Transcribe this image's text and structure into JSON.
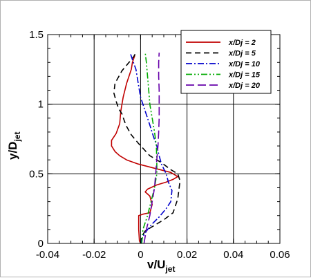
{
  "chart_data": {
    "type": "line",
    "xlabel": "v/U",
    "xlabel_sub": "jet",
    "ylabel": "y/D",
    "ylabel_sub": "jet",
    "xlim": [
      -0.04,
      0.06
    ],
    "ylim": [
      0,
      1.5
    ],
    "xticks": [
      -0.04,
      -0.02,
      0,
      0.02,
      0.04,
      0.06
    ],
    "xtick_labels": [
      "-0.04",
      "-0.02",
      "0",
      "0.02",
      "0.04",
      "0.06"
    ],
    "yticks": [
      0,
      0.5,
      1,
      1.5
    ],
    "ytick_labels": [
      "0",
      "0.5",
      "1",
      "1.5"
    ],
    "grid": true,
    "legend_position": "top-right",
    "series": [
      {
        "name": "x/Dj = 2",
        "color": "#c00000",
        "dash": "solid",
        "points": [
          [
            0,
            0
          ],
          [
            -0.0005,
            0.02
          ],
          [
            -0.0008,
            0.1
          ],
          [
            -0.0008,
            0.2
          ],
          [
            0.001,
            0.21
          ],
          [
            0.004,
            0.22
          ],
          [
            0.005,
            0.28
          ],
          [
            0.004,
            0.34
          ],
          [
            0.002,
            0.37
          ],
          [
            0.003,
            0.39
          ],
          [
            0.007,
            0.42
          ],
          [
            0.011,
            0.44
          ],
          [
            0.014,
            0.46
          ],
          [
            0.016,
            0.48
          ],
          [
            0.013,
            0.51
          ],
          [
            0.006,
            0.54
          ],
          [
            -0.001,
            0.57
          ],
          [
            -0.006,
            0.6
          ],
          [
            -0.009,
            0.63
          ],
          [
            -0.011,
            0.66
          ],
          [
            -0.0125,
            0.7
          ],
          [
            -0.0125,
            0.74
          ],
          [
            -0.0105,
            0.79
          ],
          [
            -0.009,
            0.86
          ],
          [
            -0.0085,
            0.95
          ],
          [
            -0.0075,
            1.05
          ],
          [
            -0.006,
            1.15
          ],
          [
            -0.004,
            1.25
          ],
          [
            -0.0035,
            1.3
          ],
          [
            -0.0025,
            1.35
          ]
        ]
      },
      {
        "name": "x/Dj = 5",
        "color": "#000000",
        "dash": "8,5",
        "points": [
          [
            0,
            0
          ],
          [
            0.0005,
            0.05
          ],
          [
            0.002,
            0.09
          ],
          [
            0.005,
            0.12
          ],
          [
            0.01,
            0.17
          ],
          [
            0.014,
            0.22
          ],
          [
            0.016,
            0.32
          ],
          [
            0.017,
            0.45
          ],
          [
            0.016,
            0.5
          ],
          [
            0.013,
            0.53
          ],
          [
            0.009,
            0.58
          ],
          [
            0.004,
            0.63
          ],
          [
            -0.001,
            0.72
          ],
          [
            -0.004,
            0.78
          ],
          [
            -0.006,
            0.84
          ],
          [
            -0.007,
            0.88
          ],
          [
            -0.008,
            0.93
          ],
          [
            -0.0095,
            0.97
          ],
          [
            -0.0105,
            1.02
          ],
          [
            -0.0115,
            1.08
          ],
          [
            -0.011,
            1.15
          ],
          [
            -0.008,
            1.24
          ],
          [
            -0.005,
            1.3
          ],
          [
            -0.003,
            1.34
          ],
          [
            -0.002,
            1.37
          ]
        ]
      },
      {
        "name": "x/Dj = 10",
        "color": "#0000cc",
        "dash": "9,3,2,3",
        "points": [
          [
            0,
            0
          ],
          [
            0.001,
            0.05
          ],
          [
            0.003,
            0.1
          ],
          [
            0.005,
            0.14
          ],
          [
            0.008,
            0.19
          ],
          [
            0.011,
            0.25
          ],
          [
            0.013,
            0.3
          ],
          [
            0.0135,
            0.38
          ],
          [
            0.012,
            0.44
          ],
          [
            0.011,
            0.5
          ],
          [
            0.009,
            0.57
          ],
          [
            0.008,
            0.63
          ],
          [
            0.007,
            0.7
          ],
          [
            0.0055,
            0.77
          ],
          [
            0.004,
            0.85
          ],
          [
            0.002,
            0.95
          ],
          [
            0,
            1.05
          ],
          [
            -0.001,
            1.15
          ],
          [
            -0.002,
            1.25
          ],
          [
            -0.0035,
            1.32
          ],
          [
            -0.0045,
            1.37
          ]
        ]
      },
      {
        "name": "x/Dj = 15",
        "color": "#00aa00",
        "dash": "9,3,2,3,2,3",
        "points": [
          [
            0.0005,
            0
          ],
          [
            0.001,
            0.1
          ],
          [
            0.003,
            0.2
          ],
          [
            0.0045,
            0.3
          ],
          [
            0.006,
            0.4
          ],
          [
            0.007,
            0.5
          ],
          [
            0.007,
            0.6
          ],
          [
            0.0068,
            0.7
          ],
          [
            0.006,
            0.8
          ],
          [
            0.005,
            0.9
          ],
          [
            0.004,
            1.0
          ],
          [
            0.0035,
            1.1
          ],
          [
            0.003,
            1.2
          ],
          [
            0.0025,
            1.3
          ],
          [
            0.002,
            1.37
          ]
        ]
      },
      {
        "name": "x/Dj = 20",
        "color": "#6600aa",
        "dash": "12,5",
        "points": [
          [
            0.0015,
            0
          ],
          [
            0.0025,
            0.1
          ],
          [
            0.004,
            0.2
          ],
          [
            0.005,
            0.3
          ],
          [
            0.006,
            0.4
          ],
          [
            0.0065,
            0.5
          ],
          [
            0.007,
            0.6
          ],
          [
            0.0075,
            0.7
          ],
          [
            0.0078,
            0.8
          ],
          [
            0.008,
            0.9
          ],
          [
            0.008,
            1.0
          ],
          [
            0.008,
            1.1
          ],
          [
            0.0078,
            1.2
          ],
          [
            0.0078,
            1.3
          ],
          [
            0.008,
            1.37
          ]
        ]
      }
    ]
  }
}
